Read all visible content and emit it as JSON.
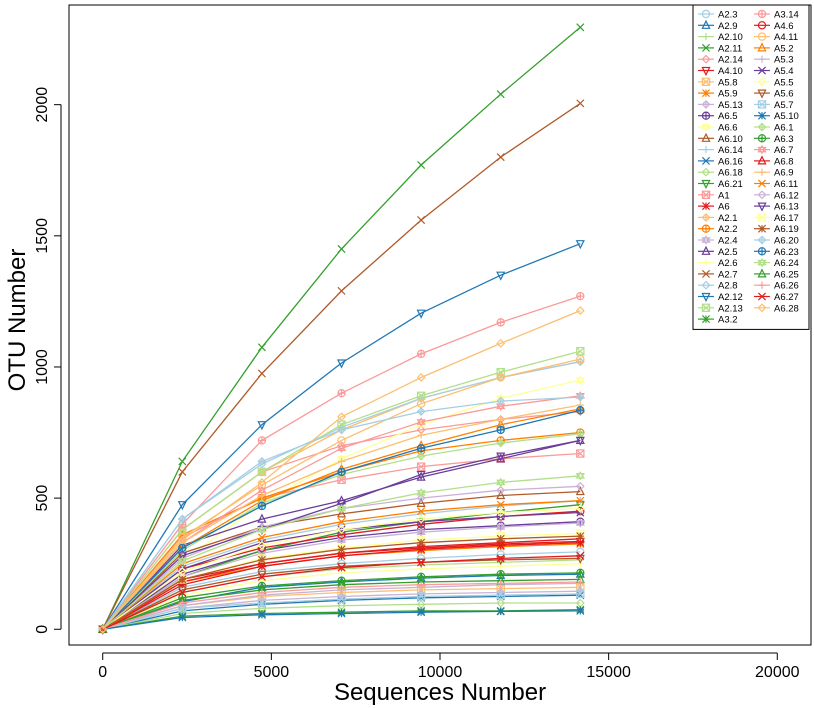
{
  "chart_data": {
    "type": "line",
    "xlabel": "Sequences Number",
    "ylabel": "OTU Number",
    "xlim": [
      -1000,
      21000
    ],
    "ylim": [
      -60,
      2380
    ],
    "xticks": [
      "0",
      "5000",
      "10000",
      "15000",
      "20000"
    ],
    "yticks": [
      "0",
      "500",
      "1000",
      "1500",
      "2000"
    ],
    "grid": false,
    "legend_position": "top-right",
    "x": [
      0,
      2360,
      4720,
      7080,
      9440,
      11800,
      14160
    ],
    "series": [
      {
        "name": "A2.3",
        "color": "#a6cee3",
        "marker": "circle",
        "values": [
          0,
          160,
          220,
          250,
          270,
          285,
          295
        ]
      },
      {
        "name": "A2.9",
        "color": "#1f78b4",
        "marker": "triangle",
        "values": [
          0,
          105,
          160,
          180,
          195,
          205,
          210
        ]
      },
      {
        "name": "A2.10",
        "color": "#b2df8a",
        "marker": "plus",
        "values": [
          0,
          140,
          200,
          230,
          245,
          255,
          265
        ]
      },
      {
        "name": "A2.11",
        "color": "#33a02c",
        "marker": "x",
        "values": [
          0,
          640,
          1075,
          1450,
          1770,
          2040,
          2295
        ]
      },
      {
        "name": "A2.14",
        "color": "#fb9a99",
        "marker": "diamond",
        "values": [
          0,
          380,
          600,
          700,
          760,
          800,
          830
        ]
      },
      {
        "name": "A4.10",
        "color": "#e31a1c",
        "marker": "triangle-down",
        "values": [
          0,
          190,
          250,
          290,
          310,
          325,
          335
        ]
      },
      {
        "name": "A5.8",
        "color": "#fdbf6f",
        "marker": "square-x",
        "values": [
          0,
          90,
          125,
          140,
          150,
          155,
          160
        ]
      },
      {
        "name": "A5.9",
        "color": "#ff7f00",
        "marker": "asterisk",
        "values": [
          0,
          180,
          240,
          280,
          300,
          315,
          325
        ]
      },
      {
        "name": "A5.13",
        "color": "#cab2d6",
        "marker": "diamond-plus",
        "values": [
          0,
          80,
          110,
          125,
          135,
          140,
          145
        ]
      },
      {
        "name": "A6.5",
        "color": "#6a3d9a",
        "marker": "circle-plus",
        "values": [
          0,
          210,
          300,
          350,
          380,
          395,
          410
        ]
      },
      {
        "name": "A6.6",
        "color": "#ffff99",
        "marker": "triangle-flip",
        "values": [
          0,
          260,
          480,
          650,
          780,
          880,
          950
        ]
      },
      {
        "name": "A6.10",
        "color": "#b15928",
        "marker": "triangle",
        "values": [
          0,
          290,
          390,
          440,
          480,
          510,
          525
        ]
      },
      {
        "name": "A6.14",
        "color": "#a6cee3",
        "marker": "plus",
        "values": [
          0,
          240,
          340,
          400,
          440,
          470,
          490
        ]
      },
      {
        "name": "A6.16",
        "color": "#1f78b4",
        "marker": "x",
        "values": [
          0,
          70,
          95,
          110,
          120,
          125,
          130
        ]
      },
      {
        "name": "A6.18",
        "color": "#b2df8a",
        "marker": "diamond",
        "values": [
          0,
          60,
          80,
          90,
          95,
          100,
          100
        ]
      },
      {
        "name": "A6.21",
        "color": "#33a02c",
        "marker": "triangle-down",
        "values": [
          0,
          200,
          300,
          370,
          410,
          445,
          475
        ]
      },
      {
        "name": "A1",
        "color": "#fb9a99",
        "marker": "square-x",
        "values": [
          0,
          350,
          500,
          570,
          620,
          650,
          670
        ]
      },
      {
        "name": "A6",
        "color": "#e31a1c",
        "marker": "asterisk",
        "values": [
          0,
          170,
          240,
          280,
          305,
          320,
          330
        ]
      },
      {
        "name": "A2.1",
        "color": "#fdbf6f",
        "marker": "diamond-plus",
        "values": [
          0,
          380,
          600,
          760,
          880,
          960,
          1020
        ]
      },
      {
        "name": "A2.2",
        "color": "#ff7f00",
        "marker": "circle-plus",
        "values": [
          0,
          360,
          500,
          600,
          680,
          720,
          750
        ]
      },
      {
        "name": "A2.4",
        "color": "#cab2d6",
        "marker": "triangle-flip",
        "values": [
          0,
          200,
          290,
          340,
          370,
          390,
          405
        ]
      },
      {
        "name": "A2.5",
        "color": "#6a3d9a",
        "marker": "triangle",
        "values": [
          0,
          320,
          420,
          490,
          580,
          650,
          720
        ]
      },
      {
        "name": "A2.6",
        "color": "#ffff99",
        "marker": "plus",
        "values": [
          0,
          130,
          185,
          215,
          230,
          240,
          250
        ]
      },
      {
        "name": "A2.7",
        "color": "#b15928",
        "marker": "x",
        "values": [
          0,
          600,
          975,
          1290,
          1560,
          1800,
          2005
        ]
      },
      {
        "name": "A2.8",
        "color": "#a6cee3",
        "marker": "diamond",
        "values": [
          0,
          420,
          630,
          770,
          880,
          960,
          1020
        ]
      },
      {
        "name": "A2.12",
        "color": "#1f78b4",
        "marker": "triangle-down",
        "values": [
          0,
          475,
          780,
          1015,
          1205,
          1350,
          1470
        ]
      },
      {
        "name": "A2.13",
        "color": "#b2df8a",
        "marker": "square-x",
        "values": [
          0,
          380,
          600,
          780,
          890,
          980,
          1060
        ]
      },
      {
        "name": "A3.2",
        "color": "#33a02c",
        "marker": "asterisk",
        "values": [
          0,
          50,
          60,
          65,
          70,
          70,
          75
        ]
      },
      {
        "name": "A3.14",
        "color": "#fb9a99",
        "marker": "circle-plus",
        "values": [
          0,
          400,
          720,
          900,
          1050,
          1170,
          1270
        ]
      },
      {
        "name": "A4.6",
        "color": "#e31a1c",
        "marker": "circle",
        "values": [
          0,
          230,
          310,
          360,
          400,
          430,
          450
        ]
      },
      {
        "name": "A4.11",
        "color": "#fdbf6f",
        "marker": "circle",
        "values": [
          0,
          350,
          550,
          720,
          860,
          960,
          1030
        ]
      },
      {
        "name": "A5.2",
        "color": "#ff7f00",
        "marker": "triangle",
        "values": [
          0,
          310,
          490,
          610,
          700,
          780,
          840
        ]
      },
      {
        "name": "A5.3",
        "color": "#cab2d6",
        "marker": "plus",
        "values": [
          0,
          90,
          130,
          150,
          160,
          170,
          175
        ]
      },
      {
        "name": "A5.4",
        "color": "#6a3d9a",
        "marker": "x",
        "values": [
          0,
          230,
          330,
          380,
          410,
          430,
          445
        ]
      },
      {
        "name": "A5.5",
        "color": "#ffff99",
        "marker": "diamond",
        "values": [
          0,
          220,
          320,
          380,
          420,
          445,
          460
        ]
      },
      {
        "name": "A5.6",
        "color": "#b15928",
        "marker": "triangle-down",
        "values": [
          0,
          150,
          210,
          240,
          255,
          265,
          270
        ]
      },
      {
        "name": "A5.7",
        "color": "#a6cee3",
        "marker": "square-x",
        "values": [
          0,
          80,
          100,
          115,
          125,
          130,
          135
        ]
      },
      {
        "name": "A5.10",
        "color": "#1f78b4",
        "marker": "asterisk",
        "values": [
          0,
          45,
          55,
          60,
          65,
          68,
          70
        ]
      },
      {
        "name": "A6.1",
        "color": "#b2df8a",
        "marker": "diamond-plus",
        "values": [
          0,
          300,
          480,
          590,
          660,
          710,
          745
        ]
      },
      {
        "name": "A6.3",
        "color": "#33a02c",
        "marker": "circle-plus",
        "values": [
          0,
          120,
          165,
          185,
          200,
          210,
          215
        ]
      },
      {
        "name": "A6.7",
        "color": "#fb9a99",
        "marker": "triangle-flip",
        "values": [
          0,
          330,
          530,
          690,
          790,
          850,
          890
        ]
      },
      {
        "name": "A6.8",
        "color": "#e31a1c",
        "marker": "triangle",
        "values": [
          0,
          180,
          250,
          290,
          315,
          330,
          345
        ]
      },
      {
        "name": "A6.9",
        "color": "#fdbf6f",
        "marker": "plus",
        "values": [
          0,
          330,
          510,
          640,
          740,
          800,
          855
        ]
      },
      {
        "name": "A6.11",
        "color": "#ff7f00",
        "marker": "x",
        "values": [
          0,
          250,
          350,
          410,
          450,
          475,
          490
        ]
      },
      {
        "name": "A6.12",
        "color": "#cab2d6",
        "marker": "diamond",
        "values": [
          0,
          270,
          390,
          460,
          500,
          530,
          545
        ]
      },
      {
        "name": "A6.13",
        "color": "#6a3d9a",
        "marker": "triangle-down",
        "values": [
          0,
          280,
          380,
          480,
          590,
          660,
          720
        ]
      },
      {
        "name": "A6.17",
        "color": "#ffff99",
        "marker": "square-x",
        "values": [
          0,
          190,
          270,
          310,
          340,
          355,
          365
        ]
      },
      {
        "name": "A6.19",
        "color": "#b15928",
        "marker": "asterisk",
        "values": [
          0,
          190,
          265,
          305,
          330,
          345,
          355
        ]
      },
      {
        "name": "A6.20",
        "color": "#a6cee3",
        "marker": "diamond-plus",
        "values": [
          0,
          420,
          640,
          760,
          830,
          870,
          885
        ]
      },
      {
        "name": "A6.23",
        "color": "#1f78b4",
        "marker": "circle-plus",
        "values": [
          0,
          310,
          470,
          600,
          690,
          760,
          835
        ]
      },
      {
        "name": "A6.24",
        "color": "#b2df8a",
        "marker": "triangle-flip",
        "values": [
          0,
          260,
          380,
          460,
          520,
          560,
          585
        ]
      },
      {
        "name": "A6.25",
        "color": "#33a02c",
        "marker": "triangle",
        "values": [
          0,
          110,
          150,
          170,
          180,
          185,
          190
        ]
      },
      {
        "name": "A6.26",
        "color": "#fb9a99",
        "marker": "plus",
        "values": [
          0,
          100,
          140,
          160,
          170,
          175,
          180
        ]
      },
      {
        "name": "A6.27",
        "color": "#e31a1c",
        "marker": "x",
        "values": [
          0,
          140,
          200,
          235,
          255,
          270,
          280
        ]
      },
      {
        "name": "A6.28",
        "color": "#fdbf6f",
        "marker": "diamond",
        "values": [
          0,
          340,
          560,
          810,
          960,
          1090,
          1215
        ]
      }
    ]
  }
}
